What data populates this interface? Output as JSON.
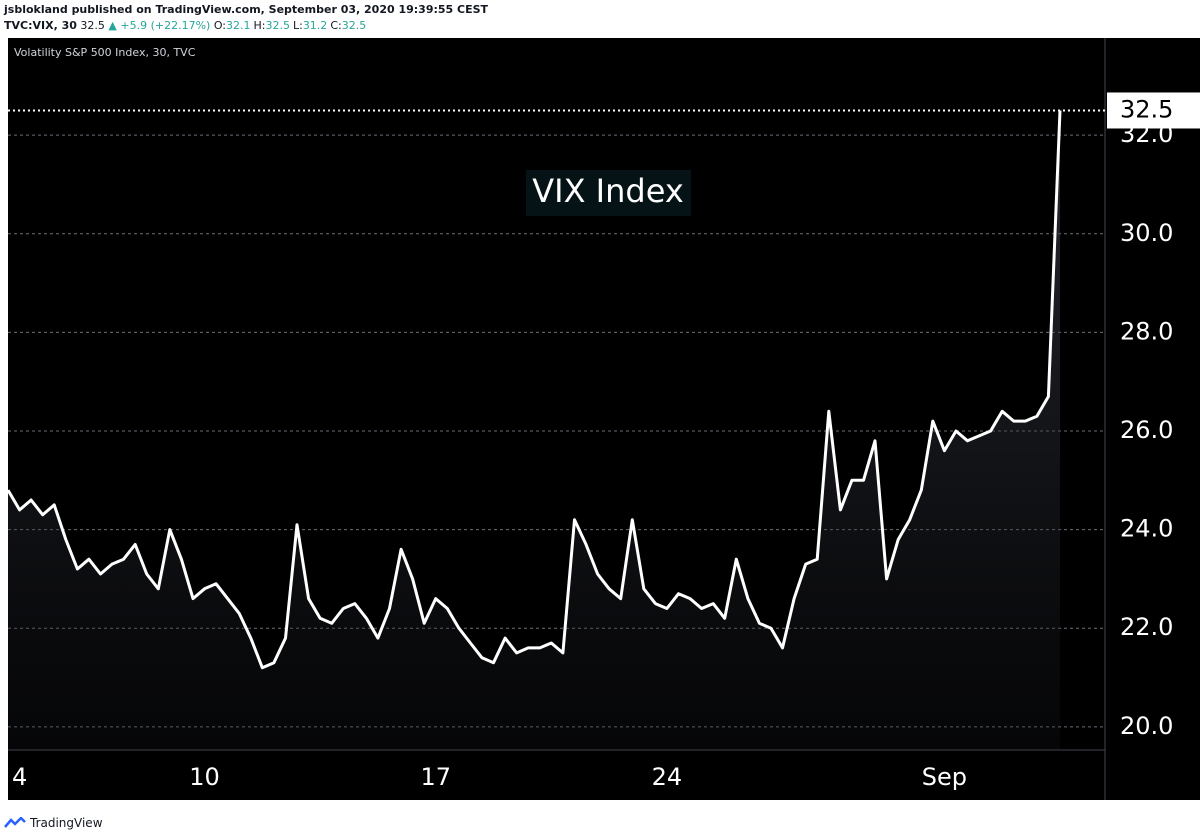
{
  "header": {
    "published": "jsblokland published on TradingView.com, September 03, 2020 19:39:55 CEST",
    "symbol": "TVC:VIX, 30",
    "last": "32.5",
    "change": "▲ +5.9 (+22.17%)",
    "ohlc": [
      {
        "label": "O:",
        "value": "32.1"
      },
      {
        "label": "H:",
        "value": "32.5"
      },
      {
        "label": "L:",
        "value": "31.2"
      },
      {
        "label": "C:",
        "value": "32.5"
      }
    ]
  },
  "footer": {
    "brand": "TradingView"
  },
  "chart_data": {
    "type": "area",
    "title": "Volatility S&P 500 Index, 30, TVC",
    "annotation": "VIX Index",
    "categories": [
      "4",
      null,
      null,
      null,
      null,
      null,
      null,
      null,
      null,
      null,
      null,
      null,
      null,
      null,
      null,
      null,
      null,
      "10",
      null,
      null,
      null,
      null,
      null,
      null,
      null,
      null,
      null,
      null,
      null,
      null,
      null,
      null,
      null,
      null,
      null,
      null,
      null,
      "17",
      null,
      null,
      null,
      null,
      null,
      null,
      null,
      null,
      null,
      null,
      null,
      null,
      null,
      null,
      null,
      null,
      null,
      null,
      null,
      "24",
      null,
      null,
      null,
      null,
      null,
      null,
      null,
      null,
      null,
      null,
      null,
      null,
      null,
      null,
      null,
      null,
      null,
      null,
      null,
      null,
      null,
      null,
      null,
      "Sep",
      null,
      null,
      null,
      null,
      null,
      null,
      null,
      null,
      null,
      null
    ],
    "series": [
      {
        "color": "#ffffff",
        "values": [
          24.8,
          24.4,
          24.6,
          24.3,
          24.5,
          23.8,
          23.2,
          23.4,
          23.1,
          23.3,
          23.4,
          23.7,
          23.1,
          22.8,
          24.0,
          23.4,
          22.6,
          22.8,
          22.9,
          22.6,
          22.3,
          21.8,
          21.2,
          21.3,
          21.8,
          24.1,
          22.6,
          22.2,
          22.1,
          22.4,
          22.5,
          22.2,
          21.8,
          22.4,
          23.6,
          23.0,
          22.1,
          22.6,
          22.4,
          22.0,
          21.7,
          21.4,
          21.3,
          21.8,
          21.5,
          21.6,
          21.6,
          21.7,
          21.5,
          24.2,
          23.7,
          23.1,
          22.8,
          22.6,
          24.2,
          22.8,
          22.5,
          22.4,
          22.7,
          22.6,
          22.4,
          22.5,
          22.2,
          23.4,
          22.6,
          22.1,
          22.0,
          21.6,
          22.6,
          23.3,
          23.4,
          26.4,
          24.4,
          25.0,
          25.0,
          25.8,
          23.0,
          23.8,
          24.2,
          24.8,
          26.2,
          25.6,
          26.0,
          25.8,
          25.9,
          26.0,
          26.4,
          26.2,
          26.2,
          26.3,
          26.7,
          32.5
        ],
        "value_labels": [
          null,
          null,
          null,
          null,
          null,
          null,
          null,
          null,
          null,
          null,
          null,
          null,
          null,
          null,
          null,
          null,
          null,
          null,
          null,
          null,
          null,
          null,
          null,
          null,
          null,
          null,
          null,
          null,
          null,
          null,
          null,
          null,
          null,
          null,
          null,
          null,
          null,
          null,
          null,
          null,
          null,
          null,
          null,
          null,
          null,
          null,
          null,
          null,
          null,
          null,
          null,
          null,
          null,
          null,
          null,
          null,
          null,
          null,
          null,
          null,
          null,
          null,
          null,
          null,
          null,
          null,
          null,
          null,
          null,
          null,
          null,
          null,
          null,
          null,
          null,
          null,
          null,
          null,
          null,
          null,
          null,
          null,
          null,
          null,
          null,
          null,
          null,
          null,
          null,
          null,
          null,
          "32.5"
        ]
      }
    ],
    "ylim": [
      19.53,
      33.97
    ],
    "yticks": [
      {
        "value": 20,
        "label": "20.0"
      },
      {
        "value": 22,
        "label": "22.0"
      },
      {
        "value": 24,
        "label": "24.0"
      },
      {
        "value": 26,
        "label": "26.0"
      },
      {
        "value": 28,
        "label": "28.0"
      },
      {
        "value": 30,
        "label": "30.0"
      },
      {
        "value": 32,
        "label": "32.0"
      }
    ],
    "grid": true,
    "background": "#000000"
  }
}
